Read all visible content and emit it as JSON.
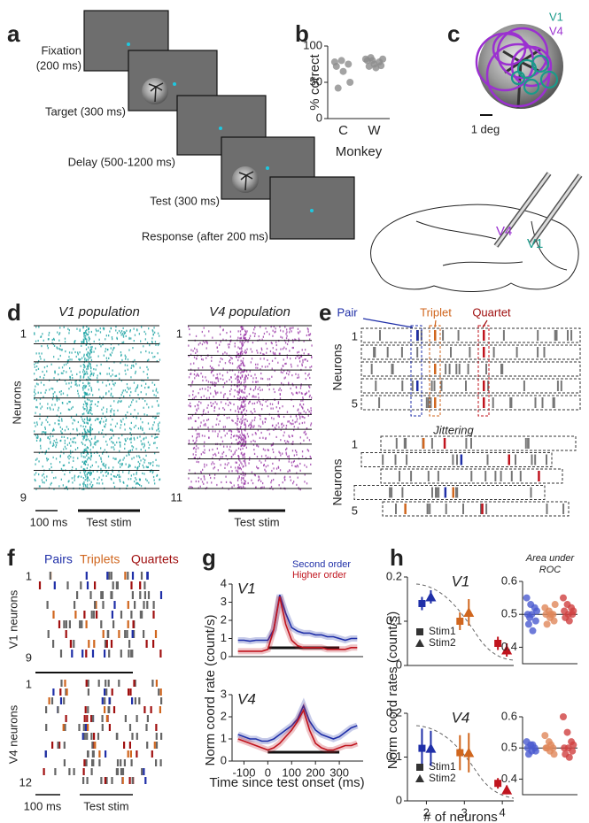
{
  "panel_labels": [
    "a",
    "b",
    "c",
    "d",
    "e",
    "f",
    "g",
    "h"
  ],
  "task": {
    "fixation": [
      "Fixation",
      "(200 ms)"
    ],
    "target": "Target (300 ms)",
    "delay": "Delay (500-1200 ms)",
    "test": "Test (300 ms)",
    "response": "Response (after 200 ms)"
  },
  "recording": {
    "legend": [
      "V1",
      "V4"
    ],
    "scale": "1 deg",
    "areas": [
      "V4",
      "V1"
    ]
  },
  "populations": {
    "titles": [
      "V1 population",
      "V4 population"
    ],
    "ylabel": "Neurons",
    "v1_rows": [
      "1",
      "9"
    ],
    "v4_rows": [
      "1",
      "11"
    ],
    "scale": "100 ms",
    "stim": [
      "Test stim",
      "Test stim"
    ]
  },
  "patterns": {
    "labels": [
      "Pair",
      "Triplet",
      "Quartet"
    ],
    "ylabel": "Neurons",
    "rows": [
      "1",
      "5"
    ],
    "jitter_title": "Jittering",
    "jitter_ylabel": "Neurons",
    "jitter_rows": [
      "1",
      "5"
    ]
  },
  "coordination": {
    "labels": [
      "Pairs",
      "Triplets",
      "Quartets"
    ],
    "v1_label": "V1 neurons",
    "v1_rows": [
      "1",
      "9"
    ],
    "v4_label": "V4 neurons",
    "v4_rows": [
      "1",
      "12"
    ],
    "scale": "100 ms",
    "stim": "Test stim"
  },
  "chart_data": [
    {
      "type": "strip",
      "ylabel": "% correct",
      "xlabel": "Monkey",
      "categories": [
        "C",
        "W"
      ],
      "color": "#8c8c8c",
      "values": [
        [
          78,
          80,
          75,
          72,
          65,
          50,
          42
        ],
        [
          82,
          80,
          78,
          80,
          75,
          73,
          72,
          70,
          82,
          84
        ]
      ],
      "ylim": [
        0,
        100
      ],
      "yticks": [
        0,
        50,
        100
      ]
    },
    {
      "type": "line",
      "title": "V1",
      "x": [
        -125,
        -100,
        -75,
        -50,
        -25,
        0,
        25,
        50,
        75,
        100,
        125,
        150,
        175,
        200,
        225,
        250,
        275,
        300,
        325,
        350,
        375
      ],
      "series": [
        {
          "name": "Second order",
          "color": "#1f2fa8",
          "values": [
            0.9,
            0.9,
            0.85,
            0.9,
            0.9,
            0.9,
            1.5,
            3.4,
            2.4,
            1.6,
            1.4,
            1.3,
            1.3,
            1.2,
            1.2,
            1.1,
            1.1,
            1.0,
            0.9,
            1.0,
            1.0
          ]
        },
        {
          "name": "Higher order",
          "color": "#c0141e",
          "values": [
            0.3,
            0.3,
            0.3,
            0.3,
            0.3,
            0.4,
            1.5,
            3.3,
            1.8,
            0.9,
            0.6,
            0.5,
            0.5,
            0.5,
            0.5,
            0.4,
            0.4,
            0.4,
            0.4,
            0.5,
            0.5
          ]
        }
      ],
      "xlim": [
        -150,
        400
      ],
      "ylim": [
        0,
        4
      ],
      "yticks": [
        0,
        1,
        2,
        3,
        4
      ],
      "stimulus": [
        0,
        300
      ]
    },
    {
      "type": "line",
      "title": "V4",
      "ylabel": "Norm coord rate (count/s)",
      "xlabel": "Time since test onset (ms)",
      "x": [
        -125,
        -100,
        -75,
        -50,
        -25,
        0,
        25,
        50,
        75,
        100,
        125,
        150,
        175,
        200,
        225,
        250,
        275,
        300,
        325,
        350,
        375
      ],
      "series": [
        {
          "color": "#1f2fa8",
          "values": [
            1.2,
            1.1,
            1.0,
            1.0,
            0.9,
            0.9,
            1.0,
            1.2,
            1.4,
            1.6,
            1.9,
            2.5,
            1.8,
            1.4,
            1.2,
            1.1,
            1.0,
            1.1,
            1.3,
            1.5,
            1.6
          ]
        },
        {
          "color": "#c0141e",
          "values": [
            1.0,
            0.9,
            0.8,
            0.7,
            0.6,
            0.5,
            0.6,
            0.8,
            1.1,
            1.4,
            1.8,
            2.3,
            1.4,
            0.8,
            0.6,
            0.5,
            0.5,
            0.6,
            0.7,
            0.7,
            0.8
          ]
        }
      ],
      "xlim": [
        -150,
        400
      ],
      "xticks": [
        -100,
        0,
        100,
        200,
        300
      ],
      "ylim": [
        0,
        3
      ],
      "yticks": [
        0,
        1,
        2,
        3
      ],
      "stimulus": [
        0,
        300
      ]
    },
    {
      "type": "errorbar",
      "title": "V1",
      "x": [
        2,
        3,
        4
      ],
      "colors": [
        "#1f2fa8",
        "#d0661e",
        "#c0141e"
      ],
      "series": [
        {
          "name": "Stim1",
          "marker": "square",
          "values": [
            0.14,
            0.1,
            0.05
          ],
          "errors": [
            0.015,
            0.02,
            0.015
          ]
        },
        {
          "name": "Stim2",
          "marker": "triangle",
          "values": [
            0.155,
            0.12,
            0.035
          ],
          "errors": [
            0.015,
            0.03,
            0.015
          ]
        }
      ],
      "xlim": [
        1.5,
        4.3
      ],
      "ylim": [
        0,
        0.2
      ],
      "yticks": [
        0,
        0.1,
        0.2
      ]
    },
    {
      "type": "strip",
      "title": [
        "Area under",
        "ROC"
      ],
      "colors": [
        "#4a5ad0",
        "#e0875a",
        "#d04040"
      ],
      "values": [
        [
          0.55,
          0.53,
          0.52,
          0.5,
          0.5,
          0.48,
          0.47,
          0.45,
          0.51,
          0.49
        ],
        [
          0.52,
          0.51,
          0.5,
          0.5,
          0.49,
          0.48,
          0.47,
          0.5,
          0.53
        ],
        [
          0.55,
          0.53,
          0.52,
          0.51,
          0.5,
          0.5,
          0.49,
          0.48,
          0.51
        ]
      ],
      "reference": 0.5,
      "ylim": [
        0.35,
        0.6
      ],
      "yticks": [
        0.4,
        0.5,
        0.6
      ]
    },
    {
      "type": "errorbar",
      "title": "V4",
      "ylabel": "Norm coord rates (count/s)",
      "xlabel": "# of neurons",
      "x": [
        2,
        3,
        4
      ],
      "colors": [
        "#1f2fa8",
        "#d0661e",
        "#c0141e"
      ],
      "series": [
        {
          "name": "Stim1",
          "marker": "square",
          "values": [
            0.12,
            0.11,
            0.04
          ],
          "errors": [
            0.045,
            0.04,
            0.012
          ]
        },
        {
          "name": "Stim2",
          "marker": "triangle",
          "values": [
            0.12,
            0.11,
            0.025
          ],
          "errors": [
            0.04,
            0.045,
            0.01
          ]
        }
      ],
      "xlim": [
        1.5,
        4.3
      ],
      "xticks": [
        2,
        3,
        4
      ],
      "ylim": [
        0,
        0.2
      ],
      "yticks": [
        0,
        0.1,
        0.2
      ]
    },
    {
      "type": "strip",
      "colors": [
        "#4a5ad0",
        "#e0875a",
        "#d04040"
      ],
      "values": [
        [
          0.52,
          0.51,
          0.5,
          0.5,
          0.49,
          0.49,
          0.48,
          0.51
        ],
        [
          0.54,
          0.52,
          0.5,
          0.5,
          0.49,
          0.48,
          0.5,
          0.51
        ],
        [
          0.6,
          0.55,
          0.52,
          0.5,
          0.5,
          0.49,
          0.48,
          0.47,
          0.51
        ]
      ],
      "reference": 0.5,
      "ylim": [
        0.35,
        0.6
      ],
      "yticks": [
        0.4,
        0.5,
        0.6
      ]
    }
  ]
}
